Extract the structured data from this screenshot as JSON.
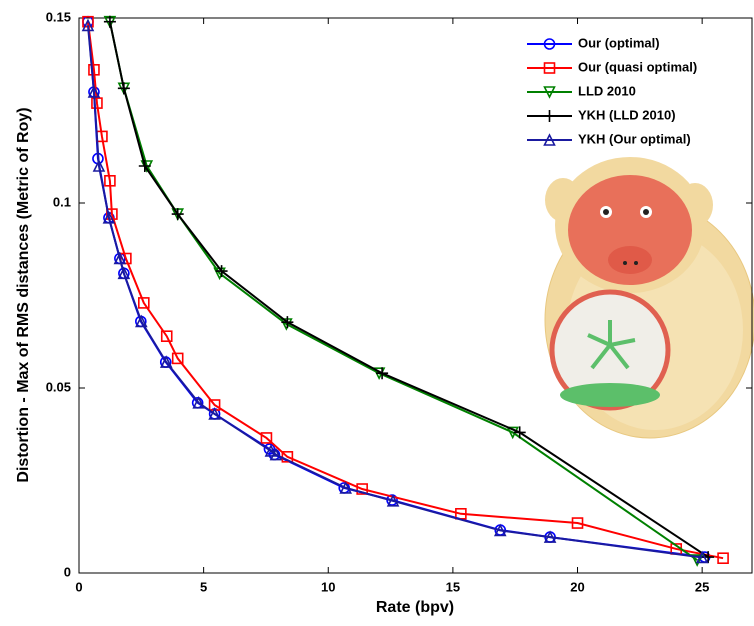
{
  "chart_data": {
    "type": "line",
    "xlabel": "Rate (bpv)",
    "ylabel": "Distortion - Max of RMS distances (Metric of Roy)",
    "xlim": [
      0,
      27
    ],
    "ylim": [
      0,
      0.15
    ],
    "xticks": [
      0,
      5,
      10,
      15,
      20,
      25
    ],
    "yticks": [
      0,
      0.05,
      0.1,
      0.15
    ],
    "legend": "upper right",
    "series": [
      {
        "name": "Our (optimal)",
        "color": "#0000ff",
        "marker": "o",
        "x": [
          0.36,
          0.6,
          0.76,
          1.2,
          1.64,
          1.8,
          2.48,
          3.48,
          4.76,
          5.44,
          7.64,
          7.84,
          10.64,
          12.56,
          16.9,
          18.9,
          25.1
        ],
        "values": [
          0.149,
          0.13,
          0.112,
          0.096,
          0.085,
          0.081,
          0.068,
          0.057,
          0.046,
          0.043,
          0.0335,
          0.032,
          0.023,
          0.0197,
          0.0116,
          0.0097,
          0.0043
        ]
      },
      {
        "name": "Our (quasi optimal)",
        "color": "#ff0000",
        "marker": "s",
        "x": [
          0.36,
          0.6,
          0.72,
          0.92,
          1.24,
          1.32,
          1.88,
          2.6,
          3.52,
          3.96,
          5.44,
          7.52,
          8.36,
          11.36,
          15.32,
          20.0,
          23.96,
          25.84
        ],
        "values": [
          0.149,
          0.136,
          0.127,
          0.118,
          0.106,
          0.097,
          0.085,
          0.073,
          0.064,
          0.058,
          0.0454,
          0.0365,
          0.0314,
          0.0227,
          0.016,
          0.0135,
          0.0065,
          0.004
        ]
      },
      {
        "name": "LLD 2010",
        "color": "#008000",
        "marker": "v",
        "x": [
          1.24,
          1.8,
          2.72,
          3.96,
          5.64,
          8.32,
          12.04,
          17.4,
          24.8
        ],
        "values": [
          0.149,
          0.131,
          0.11,
          0.097,
          0.081,
          0.0673,
          0.054,
          0.038,
          0.0035
        ]
      },
      {
        "name": "YKH (LLD 2010)",
        "color": "#000000",
        "marker": "+",
        "x": [
          1.24,
          1.8,
          2.64,
          3.96,
          5.72,
          8.36,
          12.16,
          17.68,
          25.24
        ],
        "values": [
          0.149,
          0.131,
          0.11,
          0.097,
          0.0816,
          0.0678,
          0.054,
          0.038,
          0.0043
        ]
      },
      {
        "name": "YKH (Our optimal)",
        "color": "#1a1aa0",
        "marker": "^",
        "x": [
          0.36,
          0.6,
          0.8,
          1.2,
          1.64,
          1.8,
          2.5,
          3.5,
          4.8,
          5.44,
          7.7,
          7.9,
          10.7,
          12.6,
          16.9,
          18.9,
          25.0
        ],
        "values": [
          0.148,
          0.13,
          0.11,
          0.096,
          0.085,
          0.081,
          0.068,
          0.057,
          0.046,
          0.043,
          0.033,
          0.032,
          0.023,
          0.0195,
          0.0115,
          0.0097,
          0.0042
        ]
      }
    ]
  }
}
